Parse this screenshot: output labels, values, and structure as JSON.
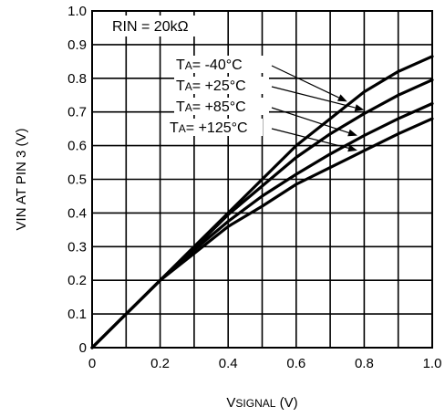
{
  "chart_data": {
    "type": "line",
    "xlabel_main": "V",
    "xlabel_sub": "SIGNAL",
    "xlabel_unit": " (V)",
    "ylabel": "VIN AT PIN 3 (V)",
    "annotation": "RIN = 20kΩ",
    "xlim": [
      0,
      1.0
    ],
    "ylim": [
      0,
      1.0
    ],
    "grid": true,
    "x_ticks": [
      "0",
      "0.2",
      "0.4",
      "0.6",
      "0.8",
      "1.0"
    ],
    "x_tick_values": [
      0,
      0.2,
      0.4,
      0.6,
      0.8,
      1.0
    ],
    "y_ticks": [
      "0",
      "0.1",
      "0.2",
      "0.3",
      "0.4",
      "0.5",
      "0.6",
      "0.7",
      "0.8",
      "0.9",
      "1.0"
    ],
    "y_tick_values": [
      0,
      0.1,
      0.2,
      0.3,
      0.4,
      0.5,
      0.6,
      0.7,
      0.8,
      0.9,
      1.0
    ],
    "series": [
      {
        "label_prefix": "T",
        "label_sub": "A",
        "label_value": "= -40°C",
        "x": [
          0,
          0.1,
          0.2,
          0.3,
          0.4,
          0.5,
          0.6,
          0.7,
          0.8,
          0.9,
          1.0
        ],
        "y": [
          0,
          0.1,
          0.2,
          0.3,
          0.4,
          0.5,
          0.6,
          0.68,
          0.76,
          0.82,
          0.865
        ]
      },
      {
        "label_prefix": "T",
        "label_sub": "A",
        "label_value": "= +25°C",
        "x": [
          0,
          0.1,
          0.2,
          0.3,
          0.4,
          0.5,
          0.6,
          0.7,
          0.8,
          0.9,
          1.0
        ],
        "y": [
          0,
          0.1,
          0.2,
          0.295,
          0.395,
          0.48,
          0.565,
          0.635,
          0.695,
          0.75,
          0.795
        ]
      },
      {
        "label_prefix": "T",
        "label_sub": "A",
        "label_value": "= +85°C",
        "x": [
          0,
          0.1,
          0.2,
          0.3,
          0.4,
          0.5,
          0.6,
          0.7,
          0.8,
          0.9,
          1.0
        ],
        "y": [
          0,
          0.1,
          0.2,
          0.29,
          0.375,
          0.45,
          0.515,
          0.575,
          0.63,
          0.68,
          0.725
        ]
      },
      {
        "label_prefix": "T",
        "label_sub": "A",
        "label_value": "= +125°C",
        "x": [
          0,
          0.1,
          0.2,
          0.3,
          0.4,
          0.5,
          0.6,
          0.7,
          0.8,
          0.9,
          1.0
        ],
        "y": [
          0,
          0.1,
          0.2,
          0.28,
          0.36,
          0.42,
          0.485,
          0.535,
          0.585,
          0.635,
          0.68
        ]
      }
    ]
  }
}
